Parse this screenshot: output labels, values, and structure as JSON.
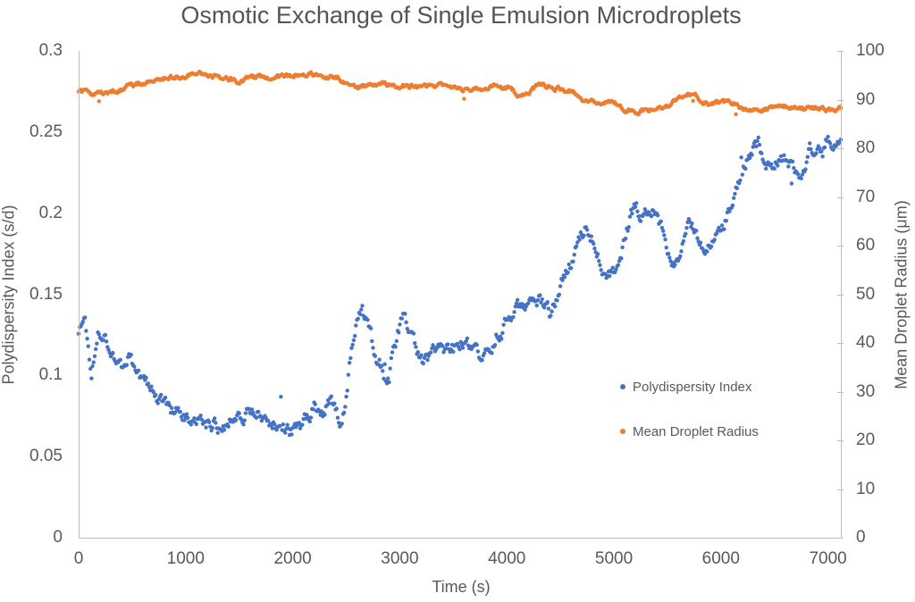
{
  "title": "Osmotic Exchange of Single Emulsion Microdroplets",
  "axes": {
    "x": {
      "label": "Time (s)",
      "min": 0,
      "max": 7120,
      "ticks": [
        {
          "v": 0,
          "label": "0"
        },
        {
          "v": 1000,
          "label": "1000"
        },
        {
          "v": 2000,
          "label": "2000"
        },
        {
          "v": 3000,
          "label": "3000"
        },
        {
          "v": 4000,
          "label": "4000"
        },
        {
          "v": 5000,
          "label": "5000"
        },
        {
          "v": 6000,
          "label": "6000"
        },
        {
          "v": 7000,
          "label": "7000"
        }
      ]
    },
    "y_left": {
      "label": "Polydispersity Index (s/d)",
      "min": 0,
      "max": 0.3,
      "ticks": [
        {
          "v": 0.3,
          "label": "0.3"
        },
        {
          "v": 0.25,
          "label": "0.25"
        },
        {
          "v": 0.2,
          "label": "0.2"
        },
        {
          "v": 0.15,
          "label": "0.15"
        },
        {
          "v": 0.1,
          "label": "0.1"
        },
        {
          "v": 0.05,
          "label": "0.05"
        },
        {
          "v": 0,
          "label": "0"
        }
      ]
    },
    "y_right": {
      "label": "Mean Droplet Radius (μm)",
      "min": 0,
      "max": 100,
      "ticks": [
        {
          "v": 100,
          "label": "100"
        },
        {
          "v": 90,
          "label": "90"
        },
        {
          "v": 80,
          "label": "80"
        },
        {
          "v": 70,
          "label": "70"
        },
        {
          "v": 60,
          "label": "60"
        },
        {
          "v": 50,
          "label": "50"
        },
        {
          "v": 40,
          "label": "40"
        },
        {
          "v": 30,
          "label": "30"
        },
        {
          "v": 20,
          "label": "20"
        },
        {
          "v": 10,
          "label": "10"
        },
        {
          "v": 0,
          "label": "0"
        }
      ]
    }
  },
  "legend": [
    {
      "label": "Polydispersity Index",
      "color": "#4472C4"
    },
    {
      "label": "Mean Droplet Radius",
      "color": "#ED7D31"
    }
  ],
  "colors": {
    "series_blue": "#4472C4",
    "series_orange": "#ED7D31",
    "text": "#595959",
    "title_text": "#545454",
    "axis_line": "#BFBFBF",
    "background": "#FFFFFF"
  },
  "chart_data": {
    "type": "scatter",
    "title": "Osmotic Exchange of Single Emulsion Microdroplets",
    "xlabel": "Time (s)",
    "xlim": [
      0,
      7120
    ],
    "x_tick_interval": 1000,
    "grid": false,
    "legend_position": "inside-right-middle",
    "sample_interval_s": 10,
    "axes": {
      "left": {
        "label": "Polydispersity Index (s/d)",
        "lim": [
          0,
          0.3
        ],
        "tick_interval": 0.05
      },
      "right": {
        "label": "Mean Droplet Radius (μm)",
        "lim": [
          0,
          100
        ],
        "tick_interval": 10
      }
    },
    "series": [
      {
        "name": "Polydispersity Index",
        "axis": "left",
        "color": "#4472C4",
        "marker": "filled-circle",
        "marker_px": 5,
        "noise_band": 0.006,
        "trend_anchors": [
          [
            0,
            0.128
          ],
          [
            60,
            0.135
          ],
          [
            120,
            0.1
          ],
          [
            180,
            0.132
          ],
          [
            240,
            0.125
          ],
          [
            300,
            0.118
          ],
          [
            360,
            0.112
          ],
          [
            420,
            0.1
          ],
          [
            480,
            0.112
          ],
          [
            540,
            0.103
          ],
          [
            600,
            0.097
          ],
          [
            700,
            0.089
          ],
          [
            800,
            0.082
          ],
          [
            900,
            0.076
          ],
          [
            1000,
            0.072
          ],
          [
            1100,
            0.069
          ],
          [
            1200,
            0.071
          ],
          [
            1300,
            0.07
          ],
          [
            1400,
            0.073
          ],
          [
            1500,
            0.077
          ],
          [
            1600,
            0.079
          ],
          [
            1700,
            0.074
          ],
          [
            1800,
            0.071
          ],
          [
            1900,
            0.067
          ],
          [
            2000,
            0.066
          ],
          [
            2100,
            0.071
          ],
          [
            2200,
            0.083
          ],
          [
            2250,
            0.075
          ],
          [
            2300,
            0.072
          ],
          [
            2350,
            0.086
          ],
          [
            2400,
            0.075
          ],
          [
            2450,
            0.07
          ],
          [
            2500,
            0.088
          ],
          [
            2550,
            0.118
          ],
          [
            2600,
            0.132
          ],
          [
            2650,
            0.137
          ],
          [
            2700,
            0.127
          ],
          [
            2750,
            0.117
          ],
          [
            2800,
            0.111
          ],
          [
            2850,
            0.103
          ],
          [
            2900,
            0.098
          ],
          [
            2950,
            0.12
          ],
          [
            3000,
            0.131
          ],
          [
            3050,
            0.133
          ],
          [
            3100,
            0.126
          ],
          [
            3150,
            0.12
          ],
          [
            3200,
            0.11
          ],
          [
            3250,
            0.108
          ],
          [
            3300,
            0.111
          ],
          [
            3350,
            0.114
          ],
          [
            3400,
            0.116
          ],
          [
            3450,
            0.118
          ],
          [
            3500,
            0.117
          ],
          [
            3550,
            0.119
          ],
          [
            3600,
            0.12
          ],
          [
            3650,
            0.115
          ],
          [
            3700,
            0.111
          ],
          [
            3750,
            0.108
          ],
          [
            3800,
            0.113
          ],
          [
            3850,
            0.12
          ],
          [
            3900,
            0.126
          ],
          [
            3950,
            0.129
          ],
          [
            4000,
            0.133
          ],
          [
            4050,
            0.136
          ],
          [
            4100,
            0.139
          ],
          [
            4150,
            0.142
          ],
          [
            4200,
            0.145
          ],
          [
            4250,
            0.147
          ],
          [
            4300,
            0.146
          ],
          [
            4350,
            0.141
          ],
          [
            4400,
            0.138
          ],
          [
            4450,
            0.144
          ],
          [
            4500,
            0.153
          ],
          [
            4550,
            0.161
          ],
          [
            4600,
            0.169
          ],
          [
            4650,
            0.177
          ],
          [
            4700,
            0.186
          ],
          [
            4750,
            0.193
          ],
          [
            4800,
            0.188
          ],
          [
            4850,
            0.178
          ],
          [
            4900,
            0.17
          ],
          [
            4950,
            0.165
          ],
          [
            5000,
            0.163
          ],
          [
            5050,
            0.172
          ],
          [
            5100,
            0.184
          ],
          [
            5150,
            0.197
          ],
          [
            5200,
            0.204
          ],
          [
            5250,
            0.201
          ],
          [
            5300,
            0.198
          ],
          [
            5350,
            0.202
          ],
          [
            5400,
            0.199
          ],
          [
            5450,
            0.192
          ],
          [
            5500,
            0.181
          ],
          [
            5550,
            0.173
          ],
          [
            5600,
            0.173
          ],
          [
            5650,
            0.18
          ],
          [
            5700,
            0.188
          ],
          [
            5750,
            0.192
          ],
          [
            5800,
            0.186
          ],
          [
            5850,
            0.18
          ],
          [
            5900,
            0.177
          ],
          [
            5950,
            0.183
          ],
          [
            6000,
            0.19
          ],
          [
            6050,
            0.197
          ],
          [
            6100,
            0.203
          ],
          [
            6150,
            0.212
          ],
          [
            6200,
            0.222
          ],
          [
            6250,
            0.232
          ],
          [
            6300,
            0.241
          ],
          [
            6350,
            0.244
          ],
          [
            6400,
            0.238
          ],
          [
            6450,
            0.231
          ],
          [
            6500,
            0.227
          ],
          [
            6550,
            0.232
          ],
          [
            6600,
            0.235
          ],
          [
            6650,
            0.23
          ],
          [
            6700,
            0.223
          ],
          [
            6750,
            0.227
          ],
          [
            6800,
            0.235
          ],
          [
            6850,
            0.241
          ],
          [
            6900,
            0.244
          ],
          [
            6950,
            0.24
          ],
          [
            7000,
            0.247
          ],
          [
            7050,
            0.245
          ],
          [
            7100,
            0.243
          ]
        ]
      },
      {
        "name": "Mean Droplet Radius",
        "axis": "right",
        "color": "#ED7D31",
        "marker": "filled-circle",
        "marker_px": 5,
        "noise_band": 0.6,
        "trend_anchors": [
          [
            0,
            91.8
          ],
          [
            100,
            91.3
          ],
          [
            200,
            91.0
          ],
          [
            300,
            91.6
          ],
          [
            400,
            92.2
          ],
          [
            500,
            92.8
          ],
          [
            600,
            93.4
          ],
          [
            700,
            94.0
          ],
          [
            800,
            94.4
          ],
          [
            900,
            94.6
          ],
          [
            1000,
            94.9
          ],
          [
            1100,
            95.1
          ],
          [
            1200,
            95.0
          ],
          [
            1300,
            94.7
          ],
          [
            1400,
            94.2
          ],
          [
            1500,
            93.9
          ],
          [
            1600,
            94.2
          ],
          [
            1700,
            94.6
          ],
          [
            1800,
            94.7
          ],
          [
            1900,
            94.9
          ],
          [
            2000,
            95.1
          ],
          [
            2100,
            95.2
          ],
          [
            2200,
            95.0
          ],
          [
            2300,
            94.8
          ],
          [
            2400,
            94.5
          ],
          [
            2500,
            93.3
          ],
          [
            2600,
            92.3
          ],
          [
            2700,
            92.7
          ],
          [
            2800,
            93.2
          ],
          [
            2900,
            92.8
          ],
          [
            3000,
            92.6
          ],
          [
            3100,
            92.7
          ],
          [
            3200,
            92.5
          ],
          [
            3300,
            92.7
          ],
          [
            3400,
            92.8
          ],
          [
            3500,
            92.2
          ],
          [
            3600,
            91.9
          ],
          [
            3700,
            92.1
          ],
          [
            3800,
            92.5
          ],
          [
            3900,
            92.8
          ],
          [
            4000,
            92.4
          ],
          [
            4100,
            91.2
          ],
          [
            4150,
            90.9
          ],
          [
            4200,
            91.6
          ],
          [
            4300,
            92.8
          ],
          [
            4400,
            92.6
          ],
          [
            4500,
            92.3
          ],
          [
            4600,
            91.8
          ],
          [
            4700,
            90.4
          ],
          [
            4800,
            89.8
          ],
          [
            4900,
            89.3
          ],
          [
            5000,
            89.0
          ],
          [
            5100,
            88.2
          ],
          [
            5200,
            87.3
          ],
          [
            5300,
            87.7
          ],
          [
            5400,
            88.3
          ],
          [
            5500,
            88.9
          ],
          [
            5600,
            89.9
          ],
          [
            5700,
            91.0
          ],
          [
            5750,
            91.2
          ],
          [
            5800,
            90.1
          ],
          [
            5900,
            88.9
          ],
          [
            6000,
            89.5
          ],
          [
            6100,
            89.5
          ],
          [
            6200,
            88.1
          ],
          [
            6300,
            87.4
          ],
          [
            6400,
            88.0
          ],
          [
            6500,
            88.5
          ],
          [
            6600,
            88.7
          ],
          [
            6700,
            88.3
          ],
          [
            6800,
            88.0
          ],
          [
            6900,
            88.4
          ],
          [
            7000,
            87.9
          ],
          [
            7100,
            88.2
          ]
        ]
      }
    ]
  }
}
